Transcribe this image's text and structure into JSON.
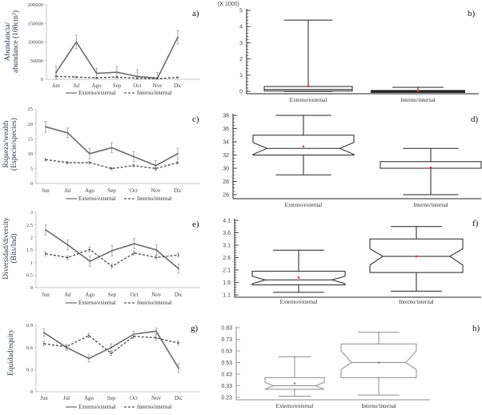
{
  "chart_data": [
    {
      "id": "a",
      "type": "line",
      "panel_label": "a)",
      "ylabel": [
        "Abundancia/",
        "abundance (100cm³)"
      ],
      "categories": [
        "Jun",
        "Jul",
        "Ago",
        "Sep",
        "Oct",
        "Nov",
        "Dic"
      ],
      "ylim": [
        0,
        200000
      ],
      "yticks": [
        0,
        50000,
        100000,
        150000,
        200000
      ],
      "ytick_labels": [
        "0",
        "50000",
        "100000",
        "150000",
        "200000"
      ],
      "legend": "bottom",
      "series": [
        {
          "name": "Externo/external",
          "style": "solid",
          "values": [
            18000,
            100000,
            16000,
            19000,
            8000,
            3000,
            113000
          ],
          "error": [
            18000,
            18000,
            14000,
            16000,
            18000,
            15000,
            18000
          ]
        },
        {
          "name": "Interno/internal",
          "style": "dashed",
          "values": [
            8000,
            6000,
            4000,
            6000,
            3000,
            2000,
            5000
          ],
          "error": [
            2000,
            2000,
            1500,
            2000,
            1500,
            1000,
            1500
          ]
        }
      ]
    },
    {
      "id": "b",
      "type": "box",
      "panel_label": "b)",
      "yscale_note": "(X 1000)",
      "ylim": [
        0,
        5
      ],
      "yticks": [
        0,
        1,
        2,
        3,
        4,
        5
      ],
      "ytick_labels": [
        "0",
        "1",
        "2",
        "3",
        "4",
        "5"
      ],
      "groups": [
        {
          "name": "Externo/external",
          "min": 0,
          "q1": 0.02,
          "median": 0.12,
          "q3": 0.3,
          "max": 4.4,
          "mean": 0.32,
          "notch": null
        },
        {
          "name": "Interno/internal",
          "min": 0,
          "q1": 0,
          "median": 0.01,
          "q3": 0.03,
          "max": 0.25,
          "mean": 0.02,
          "notch": null
        }
      ]
    },
    {
      "id": "c",
      "type": "line",
      "panel_label": "c)",
      "ylabel": [
        "Riqueza/wealth",
        "(Especie/species)"
      ],
      "categories": [
        "Jun",
        "Jul",
        "Ago",
        "Sep",
        "Oct",
        "Nov",
        "Dic"
      ],
      "ylim": [
        0,
        25
      ],
      "yticks": [
        0,
        5,
        10,
        15,
        20,
        25
      ],
      "ytick_labels": [
        "0",
        "5",
        "10",
        "15",
        "20",
        "25"
      ],
      "legend": "bottom",
      "series": [
        {
          "name": "Externo/external",
          "style": "solid",
          "values": [
            19,
            17,
            10,
            12,
            9,
            6,
            10
          ],
          "error": [
            1.8,
            1.6,
            1.7,
            1.7,
            1.7,
            1.6,
            1.8
          ]
        },
        {
          "name": "Interno/internal",
          "style": "dashed",
          "values": [
            8,
            7,
            7,
            5,
            6,
            5,
            7
          ],
          "error": [
            0.4,
            0.4,
            0.4,
            0.4,
            0.4,
            0.4,
            0.5
          ]
        }
      ]
    },
    {
      "id": "d",
      "type": "box",
      "panel_label": "d)",
      "ylim": [
        26,
        38
      ],
      "yticks": [
        26,
        28,
        30,
        32,
        34,
        36,
        38
      ],
      "ytick_labels": [
        "26",
        "28",
        "30",
        "32",
        "34",
        "36",
        "38"
      ],
      "groups": [
        {
          "name": "Externo/external",
          "min": 29,
          "q1": 32,
          "median": 33,
          "q3": 35,
          "max": 38,
          "mean": 33.3,
          "notch": [
            32.1,
            33.9
          ]
        },
        {
          "name": "Interno/internal",
          "min": 26,
          "q1": 30,
          "median": 30,
          "q3": 31,
          "max": 33,
          "mean": 30.1,
          "notch": null
        }
      ]
    },
    {
      "id": "e",
      "type": "line",
      "panel_label": "e)",
      "ylabel": [
        "Diversidad/diversity",
        "(Bits/Ind)"
      ],
      "categories": [
        "Jun",
        "Jul",
        "Ago",
        "Sep",
        "Oct",
        "Nov",
        "Dic"
      ],
      "ylim": [
        0,
        3
      ],
      "yticks": [
        0,
        0.5,
        1,
        1.5,
        2,
        2.5,
        3
      ],
      "ytick_labels": [
        "0",
        "0.5",
        "1",
        "1.5",
        "2",
        "2.5",
        "3"
      ],
      "legend": "bottom",
      "series": [
        {
          "name": "Externo/external",
          "style": "solid",
          "values": [
            2.3,
            1.7,
            1.05,
            1.47,
            1.75,
            1.5,
            0.76
          ],
          "error": [
            0.2,
            0.2,
            0.2,
            0.2,
            0.2,
            0.2,
            0.18
          ]
        },
        {
          "name": "Interno/internal",
          "style": "dashed",
          "values": [
            1.35,
            1.2,
            1.52,
            0.85,
            1.38,
            1.2,
            1.3
          ],
          "error": [
            0.08,
            0.08,
            0.1,
            0.08,
            0.08,
            0.08,
            0.08
          ]
        }
      ]
    },
    {
      "id": "f",
      "type": "box",
      "panel_label": "f)",
      "ylim": [
        1.1,
        4.1
      ],
      "yticks": [
        1.1,
        1.6,
        2.1,
        2.6,
        3.1,
        3.6,
        4.1
      ],
      "ytick_labels": [
        "1.1",
        "1.6",
        "2.1",
        "2.6",
        "3.1",
        "3.6",
        "4.1"
      ],
      "groups": [
        {
          "name": "Externo/external",
          "min": 1.2,
          "q1": 1.5,
          "median": 1.7,
          "q3": 2.05,
          "max": 2.9,
          "mean": 1.8,
          "notch": [
            1.55,
            1.85
          ]
        },
        {
          "name": "Interno/internal",
          "min": 1.25,
          "q1": 2.0,
          "median": 2.65,
          "q3": 3.35,
          "max": 3.85,
          "mean": 2.65,
          "notch": [
            2.3,
            2.95
          ]
        }
      ]
    },
    {
      "id": "g",
      "type": "line",
      "panel_label": "g)",
      "ylabel": [
        "Equidad/equity"
      ],
      "categories": [
        "Jun",
        "Jul",
        "Ago",
        "Sep",
        "Oct",
        "Nov",
        "Dic"
      ],
      "ylim": [
        0,
        0.9
      ],
      "yticks": [
        0,
        0.3,
        0.6,
        0.9
      ],
      "ytick_labels": [
        "0",
        "0.3",
        "0.6",
        "0.9"
      ],
      "legend": "bottom",
      "series": [
        {
          "name": "Externo/external",
          "style": "solid",
          "values": [
            0.8,
            0.6,
            0.45,
            0.6,
            0.78,
            0.82,
            0.32
          ],
          "error": [
            0.05,
            0.04,
            0.05,
            0.05,
            0.04,
            0.04,
            0.06
          ]
        },
        {
          "name": "Interno/internal",
          "style": "dashed",
          "values": [
            0.65,
            0.61,
            0.76,
            0.52,
            0.75,
            0.73,
            0.66
          ],
          "error": [
            0.03,
            0.03,
            0.03,
            0.03,
            0.03,
            0.03,
            0.03
          ]
        }
      ]
    },
    {
      "id": "h",
      "type": "box",
      "panel_label": "h)",
      "ylim": [
        0.23,
        0.83
      ],
      "yticks": [
        0.23,
        0.33,
        0.43,
        0.53,
        0.63,
        0.73,
        0.83
      ],
      "ytick_labels": [
        "0.23",
        "0.33",
        "0.43",
        "0.53",
        "0.63",
        "0.73",
        "0.83"
      ],
      "groups": [
        {
          "name": "Externo/external",
          "min": 0.24,
          "q1": 0.3,
          "median": 0.33,
          "q3": 0.4,
          "max": 0.58,
          "mean": 0.35,
          "notch": [
            0.3,
            0.36
          ]
        },
        {
          "name": "Interno/internal",
          "min": 0.25,
          "q1": 0.4,
          "median": 0.53,
          "q3": 0.69,
          "max": 0.79,
          "mean": 0.53,
          "notch": [
            0.47,
            0.63
          ]
        }
      ]
    }
  ],
  "colors": {
    "externo_line": "#6b6b6b",
    "interno_line": "#555555",
    "error_bar": "#9a9a9a",
    "box_line": "#222222",
    "box_line_light": "#8c8c8c",
    "mean_marker": "#d9332b",
    "axis": "#b5b5b5",
    "axis_dark": "#222222"
  }
}
